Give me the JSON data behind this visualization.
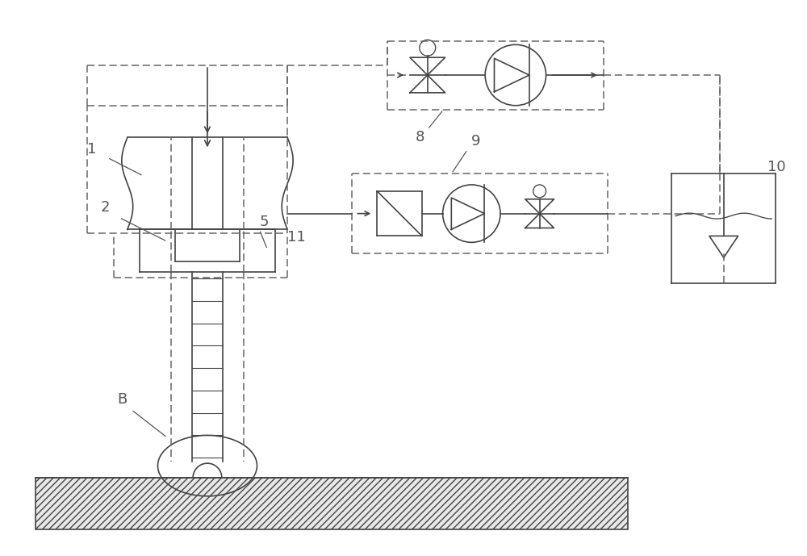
{
  "bg_color": "#ffffff",
  "line_color": "#444444",
  "dashed_color": "#666666",
  "label_fontsize": 13
}
